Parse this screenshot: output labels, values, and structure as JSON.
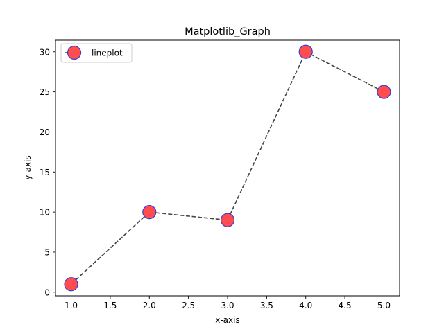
{
  "chart_data": {
    "type": "line",
    "title": "Matplotlib_Graph",
    "xlabel": "x-axis",
    "ylabel": "y-axis",
    "xlim": [
      0.8,
      5.2
    ],
    "ylim": [
      -0.45,
      31.45
    ],
    "xticks": [
      1.0,
      1.5,
      2.0,
      2.5,
      3.0,
      3.5,
      4.0,
      4.5,
      5.0
    ],
    "xtick_labels": [
      "1.0",
      "1.5",
      "2.0",
      "2.5",
      "3.0",
      "3.5",
      "4.0",
      "4.5",
      "5.0"
    ],
    "yticks": [
      0,
      5,
      10,
      15,
      20,
      25,
      30
    ],
    "ytick_labels": [
      "0",
      "5",
      "10",
      "15",
      "20",
      "25",
      "30"
    ],
    "grid": false,
    "legend_position": "top-left",
    "series": [
      {
        "name": "lineplot",
        "x": [
          1,
          2,
          3,
          4,
          5
        ],
        "y": [
          1,
          10,
          9,
          30,
          25
        ],
        "line_style": "dashed",
        "line_color": "#444444",
        "marker": "circle",
        "marker_face_color": "#ff4d4d",
        "marker_edge_color": "#3a3ad6"
      }
    ]
  }
}
